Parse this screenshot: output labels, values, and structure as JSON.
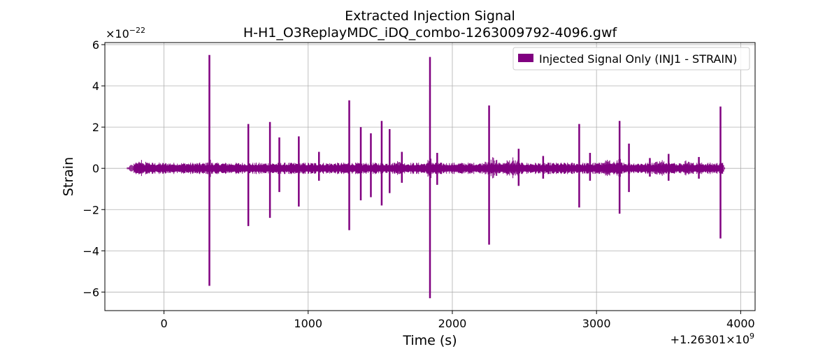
{
  "chart_data": {
    "type": "line",
    "title": "Extracted Injection Signal",
    "subtitle": "H-H1_O3ReplayMDC_iDQ_combo-1263009792-4096.gwf",
    "xlabel": "Time (s)",
    "ylabel": "Strain",
    "y_scale_label_base": "×10",
    "y_scale_label_exp": "−22",
    "x_offset_label_base": "+1.26301×10",
    "x_offset_label_exp": "9",
    "xlim": [
      -410,
      4100
    ],
    "ylim": [
      -6.9,
      6.1
    ],
    "x_ticks": [
      0,
      1000,
      2000,
      3000,
      4000
    ],
    "x_tick_labels": [
      "0",
      "1000",
      "2000",
      "3000",
      "4000"
    ],
    "y_ticks": [
      -6,
      -4,
      -2,
      0,
      2,
      4,
      6
    ],
    "y_tick_labels": [
      "−6",
      "−4",
      "−2",
      "0",
      "2",
      "4",
      "6"
    ],
    "grid": true,
    "legend_position": "top-right",
    "series": [
      {
        "name": "Injected Signal Only (INJ1 - STRAIN)",
        "color": "#800080",
        "time_range": [
          -208,
          3880
        ],
        "baseline_amplitude": 0.2,
        "spikes": [
          {
            "t": 315,
            "max": 5.5,
            "min": -5.7
          },
          {
            "t": 585,
            "max": 2.15,
            "min": -2.8
          },
          {
            "t": 735,
            "max": 2.25,
            "min": -2.4
          },
          {
            "t": 800,
            "max": 1.5,
            "min": -1.15
          },
          {
            "t": 935,
            "max": 1.55,
            "min": -1.85
          },
          {
            "t": 1075,
            "max": 0.8,
            "min": -0.6
          },
          {
            "t": 1285,
            "max": 3.3,
            "min": -3.0
          },
          {
            "t": 1365,
            "max": 2.0,
            "min": -1.55
          },
          {
            "t": 1435,
            "max": 1.7,
            "min": -1.4
          },
          {
            "t": 1510,
            "max": 2.3,
            "min": -1.8
          },
          {
            "t": 1565,
            "max": 1.9,
            "min": -1.2
          },
          {
            "t": 1650,
            "max": 0.8,
            "min": -0.7
          },
          {
            "t": 1845,
            "max": 5.4,
            "min": -6.3
          },
          {
            "t": 1895,
            "max": 0.75,
            "min": -0.8
          },
          {
            "t": 2255,
            "max": 3.05,
            "min": -3.7
          },
          {
            "t": 2460,
            "max": 0.95,
            "min": -0.85
          },
          {
            "t": 2630,
            "max": 0.6,
            "min": -0.5
          },
          {
            "t": 2880,
            "max": 2.15,
            "min": -1.9
          },
          {
            "t": 2955,
            "max": 0.75,
            "min": -0.6
          },
          {
            "t": 3160,
            "max": 2.3,
            "min": -2.2
          },
          {
            "t": 3225,
            "max": 1.2,
            "min": -1.15
          },
          {
            "t": 3370,
            "max": 0.5,
            "min": -0.4
          },
          {
            "t": 3500,
            "max": 0.7,
            "min": -0.6
          },
          {
            "t": 3710,
            "max": 0.55,
            "min": -0.5
          },
          {
            "t": 3860,
            "max": 3.0,
            "min": -3.4
          }
        ],
        "bursts": [
          {
            "t": -150,
            "amp": 0.45
          },
          {
            "t": 1620,
            "amp": 0.35
          },
          {
            "t": 2280,
            "amp": 0.55
          },
          {
            "t": 2420,
            "amp": 0.6
          },
          {
            "t": 3080,
            "amp": 0.5
          },
          {
            "t": 3160,
            "amp": 0.5
          },
          {
            "t": 3450,
            "amp": 0.45
          },
          {
            "t": 3620,
            "amp": 0.4
          }
        ]
      }
    ]
  }
}
